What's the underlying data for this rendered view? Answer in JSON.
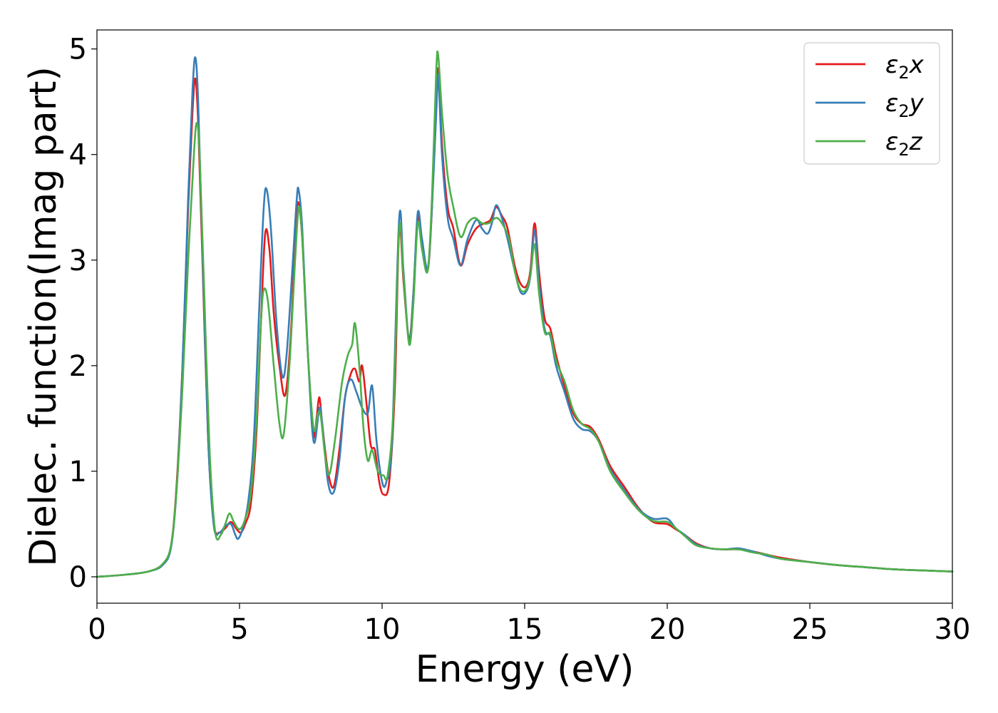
{
  "chart_data": {
    "type": "line",
    "xlabel": "Energy (eV)",
    "ylabel": "Dielec. function(Imag part)",
    "xlim": [
      0,
      30
    ],
    "ylim": [
      -0.25,
      5.18
    ],
    "xticks": [
      0,
      5,
      10,
      15,
      20,
      25,
      30
    ],
    "yticks": [
      0,
      1,
      2,
      3,
      4,
      5
    ],
    "grid": false,
    "legend_position": "top-right",
    "series": [
      {
        "name": "ε₂x",
        "legend_base": "ε",
        "legend_sub": "2",
        "legend_tail": "x",
        "color": "#e41a1c",
        "points": [
          [
            0,
            0.0
          ],
          [
            1,
            0.02
          ],
          [
            1.8,
            0.05
          ],
          [
            2.3,
            0.12
          ],
          [
            2.6,
            0.3
          ],
          [
            2.8,
            0.9
          ],
          [
            3.0,
            2.0
          ],
          [
            3.2,
            3.5
          ],
          [
            3.35,
            4.4
          ],
          [
            3.45,
            4.72
          ],
          [
            3.55,
            4.3
          ],
          [
            3.7,
            3.0
          ],
          [
            3.9,
            1.3
          ],
          [
            4.1,
            0.5
          ],
          [
            4.3,
            0.42
          ],
          [
            4.5,
            0.46
          ],
          [
            4.7,
            0.52
          ],
          [
            4.9,
            0.45
          ],
          [
            5.05,
            0.42
          ],
          [
            5.2,
            0.5
          ],
          [
            5.4,
            0.7
          ],
          [
            5.6,
            1.4
          ],
          [
            5.75,
            2.4
          ],
          [
            5.9,
            3.25
          ],
          [
            6.05,
            3.1
          ],
          [
            6.2,
            2.5
          ],
          [
            6.4,
            2.0
          ],
          [
            6.6,
            1.72
          ],
          [
            6.8,
            2.3
          ],
          [
            6.95,
            3.2
          ],
          [
            7.05,
            3.55
          ],
          [
            7.2,
            3.2
          ],
          [
            7.4,
            2.1
          ],
          [
            7.6,
            1.35
          ],
          [
            7.7,
            1.5
          ],
          [
            7.8,
            1.7
          ],
          [
            7.9,
            1.45
          ],
          [
            8.1,
            1.0
          ],
          [
            8.3,
            0.85
          ],
          [
            8.5,
            1.2
          ],
          [
            8.7,
            1.7
          ],
          [
            8.9,
            1.92
          ],
          [
            9.05,
            1.97
          ],
          [
            9.2,
            1.85
          ],
          [
            9.3,
            2.0
          ],
          [
            9.45,
            1.65
          ],
          [
            9.6,
            1.25
          ],
          [
            9.75,
            1.2
          ],
          [
            9.9,
            0.9
          ],
          [
            10.05,
            0.78
          ],
          [
            10.25,
            0.9
          ],
          [
            10.45,
            1.8
          ],
          [
            10.6,
            3.3
          ],
          [
            10.75,
            2.8
          ],
          [
            10.95,
            2.25
          ],
          [
            11.1,
            2.7
          ],
          [
            11.25,
            3.4
          ],
          [
            11.4,
            3.15
          ],
          [
            11.6,
            2.9
          ],
          [
            11.75,
            3.5
          ],
          [
            11.9,
            4.6
          ],
          [
            11.97,
            4.78
          ],
          [
            12.1,
            4.1
          ],
          [
            12.3,
            3.5
          ],
          [
            12.5,
            3.3
          ],
          [
            12.75,
            2.95
          ],
          [
            13.0,
            3.15
          ],
          [
            13.3,
            3.3
          ],
          [
            13.6,
            3.35
          ],
          [
            13.8,
            3.38
          ],
          [
            14.0,
            3.5
          ],
          [
            14.2,
            3.42
          ],
          [
            14.4,
            3.3
          ],
          [
            14.65,
            2.95
          ],
          [
            14.85,
            2.78
          ],
          [
            15.05,
            2.75
          ],
          [
            15.2,
            2.9
          ],
          [
            15.35,
            3.35
          ],
          [
            15.5,
            2.9
          ],
          [
            15.7,
            2.45
          ],
          [
            15.9,
            2.35
          ],
          [
            16.1,
            2.1
          ],
          [
            16.4,
            1.8
          ],
          [
            16.7,
            1.55
          ],
          [
            17.0,
            1.45
          ],
          [
            17.3,
            1.42
          ],
          [
            17.6,
            1.3
          ],
          [
            18.0,
            1.05
          ],
          [
            18.5,
            0.85
          ],
          [
            19.0,
            0.65
          ],
          [
            19.5,
            0.52
          ],
          [
            20.0,
            0.5
          ],
          [
            20.3,
            0.45
          ],
          [
            20.6,
            0.4
          ],
          [
            21.0,
            0.32
          ],
          [
            21.5,
            0.27
          ],
          [
            22.0,
            0.26
          ],
          [
            22.5,
            0.26
          ],
          [
            23.0,
            0.24
          ],
          [
            23.5,
            0.21
          ],
          [
            24.0,
            0.18
          ],
          [
            25.0,
            0.14
          ],
          [
            26.0,
            0.11
          ],
          [
            27.0,
            0.09
          ],
          [
            28.0,
            0.07
          ],
          [
            29.0,
            0.06
          ],
          [
            30.0,
            0.05
          ]
        ]
      },
      {
        "name": "ε₂y",
        "legend_base": "ε",
        "legend_sub": "2",
        "legend_tail": "y",
        "color": "#377eb8",
        "points": [
          [
            0,
            0.0
          ],
          [
            1,
            0.02
          ],
          [
            1.8,
            0.05
          ],
          [
            2.3,
            0.11
          ],
          [
            2.6,
            0.28
          ],
          [
            2.8,
            0.85
          ],
          [
            3.0,
            2.0
          ],
          [
            3.2,
            3.6
          ],
          [
            3.35,
            4.6
          ],
          [
            3.45,
            4.92
          ],
          [
            3.55,
            4.5
          ],
          [
            3.7,
            3.1
          ],
          [
            3.9,
            1.3
          ],
          [
            4.1,
            0.48
          ],
          [
            4.3,
            0.42
          ],
          [
            4.5,
            0.48
          ],
          [
            4.7,
            0.5
          ],
          [
            4.85,
            0.4
          ],
          [
            4.95,
            0.36
          ],
          [
            5.1,
            0.45
          ],
          [
            5.3,
            0.7
          ],
          [
            5.5,
            1.3
          ],
          [
            5.7,
            2.6
          ],
          [
            5.85,
            3.5
          ],
          [
            5.95,
            3.67
          ],
          [
            6.1,
            3.3
          ],
          [
            6.3,
            2.4
          ],
          [
            6.5,
            1.9
          ],
          [
            6.65,
            2.1
          ],
          [
            6.85,
            2.9
          ],
          [
            7.0,
            3.55
          ],
          [
            7.07,
            3.67
          ],
          [
            7.2,
            3.3
          ],
          [
            7.4,
            2.1
          ],
          [
            7.6,
            1.28
          ],
          [
            7.8,
            1.6
          ],
          [
            7.9,
            1.45
          ],
          [
            8.1,
            0.9
          ],
          [
            8.3,
            0.8
          ],
          [
            8.5,
            1.1
          ],
          [
            8.7,
            1.7
          ],
          [
            8.9,
            1.87
          ],
          [
            9.1,
            1.75
          ],
          [
            9.3,
            1.6
          ],
          [
            9.5,
            1.55
          ],
          [
            9.65,
            1.81
          ],
          [
            9.8,
            1.3
          ],
          [
            10.0,
            0.9
          ],
          [
            10.15,
            0.9
          ],
          [
            10.35,
            1.3
          ],
          [
            10.6,
            3.4
          ],
          [
            10.75,
            2.9
          ],
          [
            10.95,
            2.22
          ],
          [
            11.1,
            2.7
          ],
          [
            11.25,
            3.45
          ],
          [
            11.4,
            3.2
          ],
          [
            11.6,
            2.92
          ],
          [
            11.75,
            3.5
          ],
          [
            11.9,
            4.4
          ],
          [
            11.97,
            4.75
          ],
          [
            12.1,
            4.0
          ],
          [
            12.3,
            3.4
          ],
          [
            12.5,
            3.2
          ],
          [
            12.75,
            2.95
          ],
          [
            13.0,
            3.2
          ],
          [
            13.3,
            3.38
          ],
          [
            13.5,
            3.3
          ],
          [
            13.7,
            3.25
          ],
          [
            13.85,
            3.35
          ],
          [
            14.0,
            3.52
          ],
          [
            14.2,
            3.4
          ],
          [
            14.4,
            3.2
          ],
          [
            14.65,
            2.9
          ],
          [
            14.85,
            2.7
          ],
          [
            15.05,
            2.7
          ],
          [
            15.2,
            2.85
          ],
          [
            15.35,
            3.28
          ],
          [
            15.5,
            2.8
          ],
          [
            15.7,
            2.35
          ],
          [
            15.9,
            2.28
          ],
          [
            16.1,
            2.0
          ],
          [
            16.4,
            1.75
          ],
          [
            16.7,
            1.5
          ],
          [
            17.0,
            1.4
          ],
          [
            17.3,
            1.38
          ],
          [
            17.6,
            1.28
          ],
          [
            18.0,
            1.02
          ],
          [
            18.5,
            0.82
          ],
          [
            19.0,
            0.64
          ],
          [
            19.5,
            0.55
          ],
          [
            20.0,
            0.55
          ],
          [
            20.3,
            0.46
          ],
          [
            20.6,
            0.4
          ],
          [
            21.0,
            0.31
          ],
          [
            21.5,
            0.27
          ],
          [
            22.0,
            0.26
          ],
          [
            22.5,
            0.27
          ],
          [
            23.0,
            0.24
          ],
          [
            23.5,
            0.2
          ],
          [
            24.0,
            0.17
          ],
          [
            25.0,
            0.14
          ],
          [
            26.0,
            0.11
          ],
          [
            27.0,
            0.09
          ],
          [
            28.0,
            0.07
          ],
          [
            29.0,
            0.06
          ],
          [
            30.0,
            0.05
          ]
        ]
      },
      {
        "name": "ε₂z",
        "legend_base": "ε",
        "legend_sub": "2",
        "legend_tail": "z",
        "color": "#4daf4a",
        "points": [
          [
            0,
            0.0
          ],
          [
            1,
            0.02
          ],
          [
            1.8,
            0.05
          ],
          [
            2.3,
            0.12
          ],
          [
            2.6,
            0.3
          ],
          [
            2.8,
            0.85
          ],
          [
            3.0,
            1.8
          ],
          [
            3.2,
            3.0
          ],
          [
            3.4,
            4.0
          ],
          [
            3.5,
            4.3
          ],
          [
            3.6,
            4.0
          ],
          [
            3.75,
            2.8
          ],
          [
            3.95,
            1.2
          ],
          [
            4.15,
            0.42
          ],
          [
            4.35,
            0.4
          ],
          [
            4.5,
            0.5
          ],
          [
            4.65,
            0.6
          ],
          [
            4.8,
            0.52
          ],
          [
            5.0,
            0.45
          ],
          [
            5.2,
            0.55
          ],
          [
            5.4,
            0.8
          ],
          [
            5.6,
            1.5
          ],
          [
            5.75,
            2.4
          ],
          [
            5.85,
            2.72
          ],
          [
            6.0,
            2.6
          ],
          [
            6.2,
            2.0
          ],
          [
            6.4,
            1.45
          ],
          [
            6.55,
            1.35
          ],
          [
            6.75,
            2.0
          ],
          [
            6.95,
            3.0
          ],
          [
            7.08,
            3.5
          ],
          [
            7.2,
            3.2
          ],
          [
            7.4,
            2.1
          ],
          [
            7.6,
            1.4
          ],
          [
            7.75,
            1.55
          ],
          [
            7.85,
            1.52
          ],
          [
            8.0,
            1.15
          ],
          [
            8.15,
            0.97
          ],
          [
            8.35,
            1.3
          ],
          [
            8.6,
            1.85
          ],
          [
            8.8,
            2.1
          ],
          [
            8.95,
            2.2
          ],
          [
            9.05,
            2.4
          ],
          [
            9.2,
            2.0
          ],
          [
            9.35,
            1.4
          ],
          [
            9.5,
            1.1
          ],
          [
            9.65,
            1.2
          ],
          [
            9.85,
            1.0
          ],
          [
            10.05,
            0.96
          ],
          [
            10.2,
            0.97
          ],
          [
            10.4,
            1.6
          ],
          [
            10.6,
            3.3
          ],
          [
            10.75,
            2.85
          ],
          [
            10.95,
            2.2
          ],
          [
            11.1,
            2.6
          ],
          [
            11.25,
            3.35
          ],
          [
            11.4,
            3.1
          ],
          [
            11.6,
            2.9
          ],
          [
            11.75,
            3.6
          ],
          [
            11.9,
            4.8
          ],
          [
            11.97,
            4.93
          ],
          [
            12.1,
            4.4
          ],
          [
            12.3,
            3.8
          ],
          [
            12.5,
            3.5
          ],
          [
            12.75,
            3.22
          ],
          [
            13.0,
            3.35
          ],
          [
            13.25,
            3.4
          ],
          [
            13.5,
            3.35
          ],
          [
            13.75,
            3.35
          ],
          [
            14.0,
            3.4
          ],
          [
            14.2,
            3.35
          ],
          [
            14.45,
            3.2
          ],
          [
            14.65,
            2.9
          ],
          [
            14.85,
            2.72
          ],
          [
            15.05,
            2.72
          ],
          [
            15.2,
            2.85
          ],
          [
            15.35,
            3.15
          ],
          [
            15.5,
            2.7
          ],
          [
            15.7,
            2.32
          ],
          [
            15.9,
            2.3
          ],
          [
            16.1,
            2.05
          ],
          [
            16.4,
            1.85
          ],
          [
            16.7,
            1.58
          ],
          [
            17.0,
            1.45
          ],
          [
            17.3,
            1.4
          ],
          [
            17.6,
            1.28
          ],
          [
            18.0,
            1.0
          ],
          [
            18.5,
            0.8
          ],
          [
            19.0,
            0.63
          ],
          [
            19.5,
            0.53
          ],
          [
            20.0,
            0.52
          ],
          [
            20.3,
            0.46
          ],
          [
            20.6,
            0.39
          ],
          [
            21.0,
            0.3
          ],
          [
            21.5,
            0.27
          ],
          [
            22.0,
            0.26
          ],
          [
            22.5,
            0.26
          ],
          [
            23.0,
            0.23
          ],
          [
            23.5,
            0.21
          ],
          [
            24.0,
            0.17
          ],
          [
            25.0,
            0.14
          ],
          [
            26.0,
            0.11
          ],
          [
            27.0,
            0.09
          ],
          [
            28.0,
            0.07
          ],
          [
            29.0,
            0.06
          ],
          [
            30.0,
            0.05
          ]
        ]
      }
    ]
  }
}
